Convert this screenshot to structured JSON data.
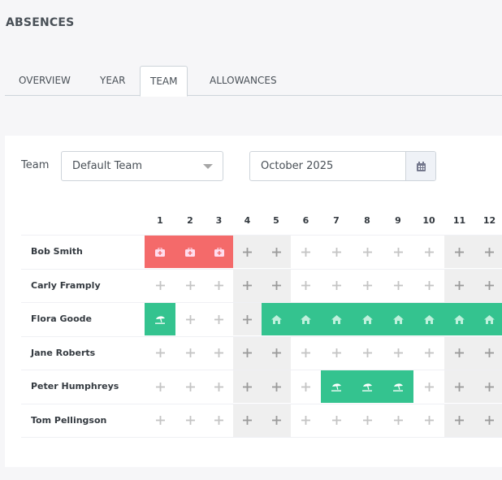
{
  "header": {
    "title": "ABSENCES"
  },
  "tabs": [
    {
      "label": "OVERVIEW",
      "active": false
    },
    {
      "label": "YEAR",
      "active": false
    },
    {
      "label": "TEAM",
      "active": true
    },
    {
      "label": "ALLOWANCES",
      "active": false
    }
  ],
  "filters": {
    "team_label": "Team",
    "team_value": "Default Team",
    "month_value": "October 2025"
  },
  "colors": {
    "sick": "#f46a6a",
    "leave": "#34c38f",
    "weekend": "#efefef"
  },
  "calendar": {
    "days": [
      "1",
      "2",
      "3",
      "4",
      "5",
      "6",
      "7",
      "8",
      "9",
      "10",
      "11",
      "12"
    ],
    "weekend_days": [
      "4",
      "5",
      "11",
      "12"
    ],
    "icons": {
      "plus": "plus-icon",
      "sick": "medical-bag-icon",
      "holiday": "beach-umbrella-icon",
      "wfh": "home-icon"
    },
    "people": [
      {
        "name": "Bob Smith",
        "cells": [
          "sick",
          "sick",
          "sick",
          "plus",
          "plus",
          "plus",
          "plus",
          "plus",
          "plus",
          "plus",
          "plus",
          "plus"
        ]
      },
      {
        "name": "Carly Framply",
        "cells": [
          "plus",
          "plus",
          "plus",
          "plus",
          "plus",
          "plus",
          "plus",
          "plus",
          "plus",
          "plus",
          "plus",
          "plus"
        ]
      },
      {
        "name": "Flora Goode",
        "cells": [
          "holiday",
          "plus",
          "plus",
          "plus",
          "wfh",
          "wfh",
          "wfh",
          "wfh",
          "wfh",
          "wfh",
          "wfh",
          "wfh"
        ]
      },
      {
        "name": "Jane Roberts",
        "cells": [
          "plus",
          "plus",
          "plus",
          "plus",
          "plus",
          "plus",
          "plus",
          "plus",
          "plus",
          "plus",
          "plus",
          "plus"
        ]
      },
      {
        "name": "Peter Humphreys",
        "cells": [
          "plus",
          "plus",
          "plus",
          "plus",
          "plus",
          "plus",
          "holiday",
          "holiday",
          "holiday",
          "plus",
          "plus",
          "plus"
        ]
      },
      {
        "name": "Tom Pellingson",
        "cells": [
          "plus",
          "plus",
          "plus",
          "plus",
          "plus",
          "plus",
          "plus",
          "plus",
          "plus",
          "plus",
          "plus",
          "plus"
        ]
      }
    ]
  }
}
